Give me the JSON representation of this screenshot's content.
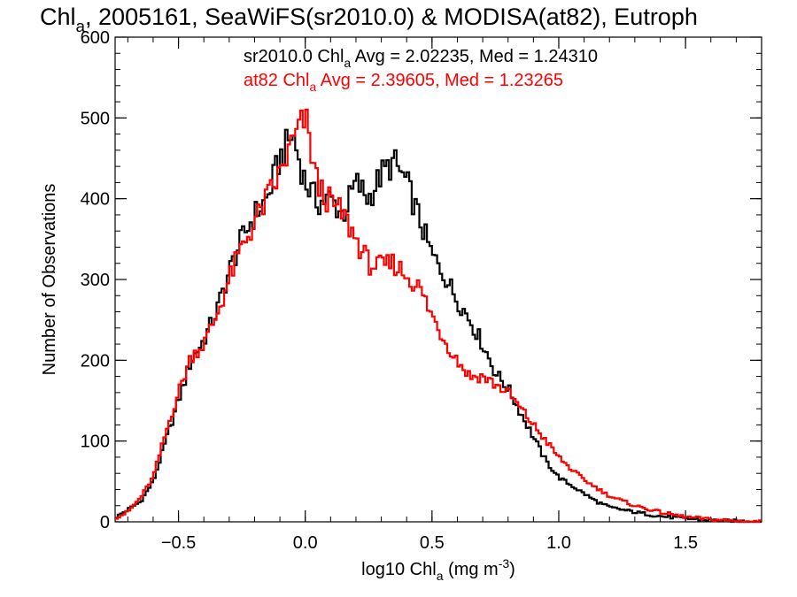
{
  "chart_data": {
    "type": "line",
    "title": {
      "text": "Chl",
      "sub": "a",
      "rest": ", 2005161, SeaWiFS(sr2010.0) & MODISA(at82), Eutroph"
    },
    "xlabel": {
      "text": "log10 Chl",
      "sub": "a",
      "mid": " (mg m",
      "sup": "-3",
      "end": ")"
    },
    "ylabel": "Number of Observations",
    "xlim": [
      -0.75,
      1.8
    ],
    "ylim": [
      0,
      600
    ],
    "x_ticks": [
      {
        "v": -0.5,
        "label": "−0.5"
      },
      {
        "v": 0.0,
        "label": "0.0"
      },
      {
        "v": 0.5,
        "label": "0.5"
      },
      {
        "v": 1.0,
        "label": "1.0"
      },
      {
        "v": 1.5,
        "label": "1.5"
      }
    ],
    "y_ticks": [
      {
        "v": 0,
        "label": "0"
      },
      {
        "v": 100,
        "label": "100"
      },
      {
        "v": 200,
        "label": "200"
      },
      {
        "v": 300,
        "label": "300"
      },
      {
        "v": 400,
        "label": "400"
      },
      {
        "v": 500,
        "label": "500"
      },
      {
        "v": 600,
        "label": "600"
      }
    ],
    "grid": false,
    "legend_placement": "top-center",
    "bin_width": 0.01,
    "series": [
      {
        "legend": {
          "pre": "sr2010.0 Chl",
          "sub": "a",
          "post": " Avg = 2.02235, Med = 1.24310"
        },
        "color": "#000000",
        "x": [
          -0.75,
          -0.7,
          -0.65,
          -0.6,
          -0.55,
          -0.5,
          -0.45,
          -0.4,
          -0.35,
          -0.3,
          -0.25,
          -0.2,
          -0.15,
          -0.1,
          -0.05,
          0.0,
          0.05,
          0.1,
          0.15,
          0.2,
          0.25,
          0.3,
          0.35,
          0.4,
          0.45,
          0.5,
          0.55,
          0.6,
          0.65,
          0.7,
          0.75,
          0.8,
          0.85,
          0.9,
          0.95,
          1.0,
          1.05,
          1.1,
          1.15,
          1.2,
          1.3,
          1.4,
          1.5,
          1.6,
          1.7,
          1.8
        ],
        "y": [
          5,
          15,
          25,
          50,
          100,
          150,
          200,
          225,
          260,
          310,
          350,
          380,
          400,
          450,
          480,
          420,
          395,
          400,
          380,
          420,
          400,
          430,
          445,
          420,
          375,
          330,
          305,
          275,
          250,
          220,
          185,
          165,
          135,
          105,
          75,
          55,
          45,
          35,
          25,
          18,
          12,
          7,
          4,
          2,
          1,
          0
        ]
      },
      {
        "legend": {
          "pre": "at82 Chl",
          "sub": "a",
          "post": " Avg = 2.39605, Med = 1.23265"
        },
        "color": "#ff0000",
        "x": [
          -0.75,
          -0.7,
          -0.65,
          -0.6,
          -0.55,
          -0.5,
          -0.45,
          -0.4,
          -0.35,
          -0.3,
          -0.25,
          -0.2,
          -0.15,
          -0.1,
          -0.05,
          0.0,
          0.05,
          0.1,
          0.15,
          0.2,
          0.25,
          0.3,
          0.35,
          0.4,
          0.45,
          0.5,
          0.55,
          0.6,
          0.65,
          0.7,
          0.75,
          0.8,
          0.85,
          0.9,
          0.95,
          1.0,
          1.05,
          1.1,
          1.15,
          1.2,
          1.3,
          1.4,
          1.5,
          1.6,
          1.7,
          1.8
        ],
        "y": [
          5,
          12,
          30,
          55,
          110,
          160,
          205,
          220,
          255,
          300,
          340,
          370,
          400,
          430,
          470,
          500,
          415,
          395,
          380,
          350,
          320,
          315,
          320,
          305,
          290,
          255,
          225,
          200,
          180,
          180,
          170,
          160,
          140,
          120,
          100,
          80,
          65,
          52,
          42,
          32,
          20,
          12,
          6,
          3,
          1,
          0
        ]
      }
    ]
  }
}
